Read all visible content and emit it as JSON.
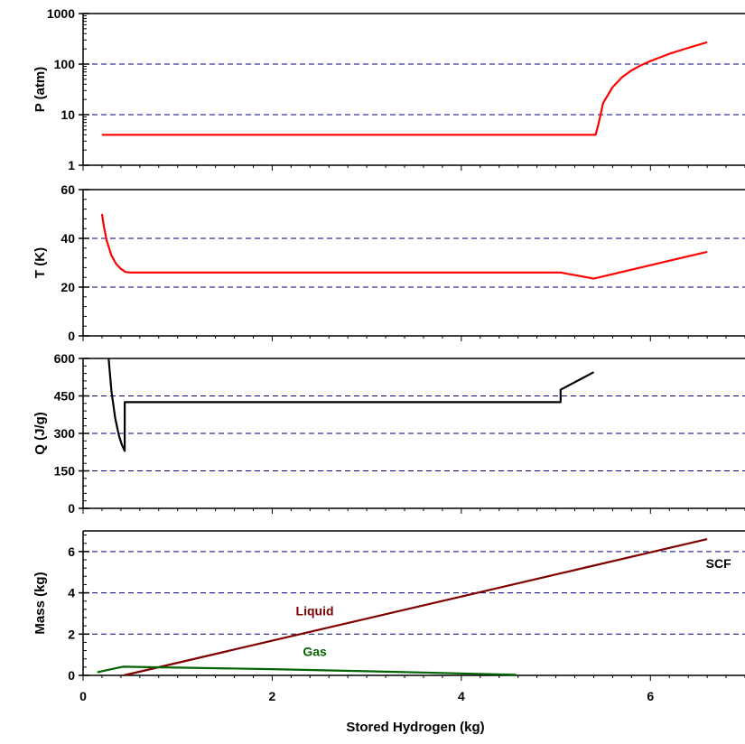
{
  "colors": {
    "red": "#ff0000",
    "black": "#000000",
    "liquid": "#800000",
    "gas": "#006400",
    "grid": "#000080"
  },
  "xlabel": "Stored Hydrogen (kg)",
  "chart_data": [
    {
      "type": "line",
      "ylabel": "P (atm)",
      "yscale": "log",
      "ylim": [
        1,
        1000
      ],
      "yticks": [
        1,
        10,
        100,
        1000
      ],
      "ytick_labels": [
        "1",
        "10",
        "100",
        "1000"
      ],
      "xlim": [
        0,
        7
      ],
      "grid": "horizontal dashed",
      "series": [
        {
          "color": "#ff0000",
          "x": [
            0.2,
            0.5,
            1,
            2,
            3,
            4,
            5,
            5.42,
            5.45,
            5.5,
            5.6,
            5.7,
            5.8,
            5.9,
            6.0,
            6.2,
            6.4,
            6.6
          ],
          "y": [
            4,
            4,
            4,
            4,
            4,
            4,
            4,
            4,
            6.5,
            17,
            35,
            55,
            75,
            95,
            115,
            160,
            210,
            270
          ]
        }
      ]
    },
    {
      "type": "line",
      "ylabel": "T (K)",
      "ylim": [
        0,
        60
      ],
      "yticks": [
        0,
        20,
        40,
        60
      ],
      "ytick_labels": [
        "0",
        "20",
        "40",
        "60"
      ],
      "xlim": [
        0,
        7
      ],
      "grid": "horizontal dashed",
      "series": [
        {
          "color": "#ff0000",
          "x": [
            0.2,
            0.22,
            0.25,
            0.3,
            0.35,
            0.4,
            0.45,
            0.5,
            1,
            2,
            3,
            4,
            5,
            5.05,
            5.4,
            6.6
          ],
          "y": [
            50,
            45,
            39,
            33,
            29.5,
            27.5,
            26.2,
            26,
            26,
            26,
            26,
            26,
            26,
            26,
            23.5,
            34.5
          ]
        }
      ]
    },
    {
      "type": "line",
      "ylabel": "Q (J/g)",
      "ylim": [
        0,
        600
      ],
      "yticks": [
        0,
        150,
        300,
        450,
        600
      ],
      "ytick_labels": [
        "0",
        "150",
        "300",
        "450",
        "600"
      ],
      "xlim": [
        0,
        7
      ],
      "grid": "horizontal dashed",
      "series": [
        {
          "color": "#000000",
          "x": [
            0.27,
            0.3,
            0.34,
            0.38,
            0.41,
            0.44,
            0.44,
            1,
            2,
            3,
            4,
            5,
            5.05,
            5.05,
            5.4
          ],
          "y": [
            600,
            470,
            360,
            290,
            255,
            230,
            425,
            425,
            425,
            425,
            425,
            425,
            425,
            475,
            545
          ]
        }
      ]
    },
    {
      "type": "line",
      "ylabel": "Mass (kg)",
      "ylim": [
        0,
        7
      ],
      "yticks": [
        0,
        2,
        4,
        6
      ],
      "ytick_labels": [
        "0",
        "2",
        "4",
        "6"
      ],
      "xlim": [
        0,
        7
      ],
      "xticks": [
        0,
        2,
        4,
        6
      ],
      "xtick_labels": [
        "0",
        "2",
        "4",
        "6"
      ],
      "grid": "horizontal dashed",
      "series": [
        {
          "name": "Liquid",
          "color": "#800000",
          "x": [
            0.43,
            6.6
          ],
          "y": [
            0,
            6.6
          ]
        },
        {
          "name": "Gas",
          "color": "#006400",
          "x": [
            0.15,
            0.42,
            2,
            3,
            4.58
          ],
          "y": [
            0.15,
            0.42,
            0.3,
            0.2,
            0.03
          ]
        }
      ],
      "annotations": [
        {
          "text": "SCF",
          "color": "#000000",
          "x": 6.72,
          "y": 5.2
        },
        {
          "text": "Liquid",
          "color": "#800000",
          "x": 2.45,
          "y": 2.9
        },
        {
          "text": "Gas",
          "color": "#006400",
          "x": 2.45,
          "y": 0.95
        }
      ]
    }
  ]
}
